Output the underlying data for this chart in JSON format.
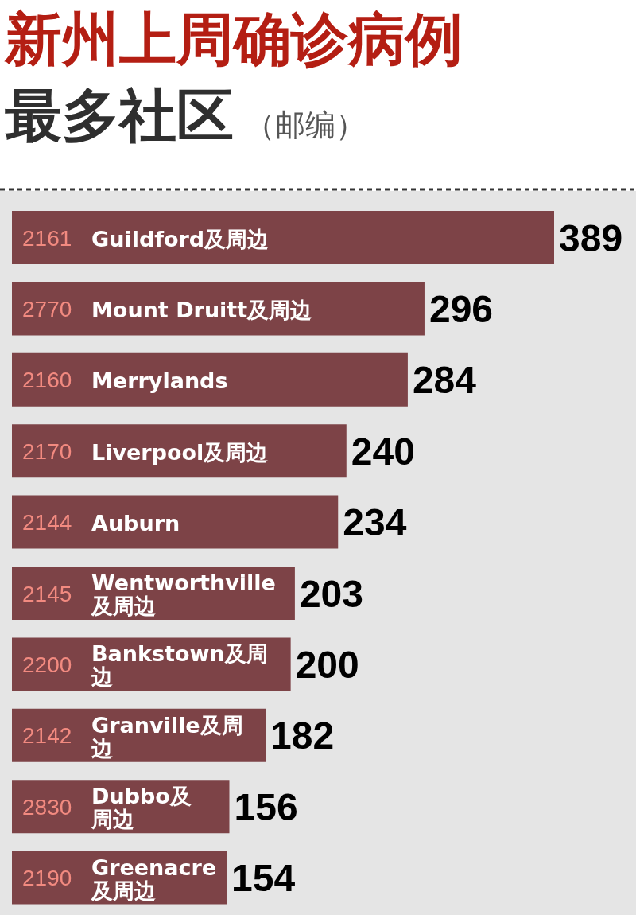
{
  "chart_data": {
    "type": "bar",
    "orientation": "horizontal",
    "title": "新州上周确诊病例",
    "subtitle": "最多社区",
    "annotations": [
      "（邮编）"
    ],
    "categories": [
      "2161 Guildford及周边",
      "2770 Mount Druitt及周边",
      "2160 Merrylands",
      "2170 Liverpool及周边",
      "2144 Auburn",
      "2145 Wentworthville及周边",
      "2200 Bankstown及周边",
      "2142 Granville及周边",
      "2830 Dubbo及周边",
      "2190 Greenacre及周边"
    ],
    "values": [
      389,
      296,
      284,
      240,
      234,
      203,
      200,
      182,
      156,
      154
    ],
    "color": "#7d4347",
    "data_labels": true
  }
}
